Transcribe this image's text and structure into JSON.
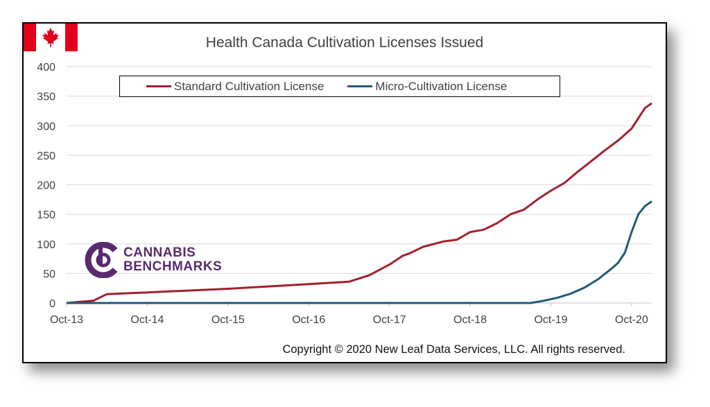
{
  "chart_data": {
    "type": "line",
    "title": "Health Canada Cultivation Licenses Issued",
    "xlabel": "",
    "ylabel": "",
    "ylim": [
      0,
      400
    ],
    "yticks": [
      0,
      50,
      100,
      150,
      200,
      250,
      300,
      350,
      400
    ],
    "xticks": [
      "Oct-13",
      "Oct-14",
      "Oct-15",
      "Oct-16",
      "Oct-17",
      "Oct-18",
      "Oct-19",
      "Oct-20"
    ],
    "grid": "horizontal",
    "legend_position": "top",
    "series": [
      {
        "name": "Standard Cultivation License",
        "color": "#a51e2e",
        "x": [
          "2013-10",
          "2013-12",
          "2014-02",
          "2014-04",
          "2014-06",
          "2014-10",
          "2015-04",
          "2015-10",
          "2016-04",
          "2016-10",
          "2017-04",
          "2017-07",
          "2017-10",
          "2017-12",
          "2018-01",
          "2018-03",
          "2018-06",
          "2018-08",
          "2018-10",
          "2018-12",
          "2019-02",
          "2019-04",
          "2019-06",
          "2019-08",
          "2019-10",
          "2019-12",
          "2020-02",
          "2020-04",
          "2020-06",
          "2020-08",
          "2020-10",
          "2020-12",
          "2021-01"
        ],
        "values": [
          0,
          2,
          4,
          15,
          16,
          18,
          21,
          24,
          28,
          32,
          36,
          47,
          65,
          80,
          84,
          95,
          104,
          107,
          120,
          124,
          135,
          150,
          158,
          175,
          190,
          203,
          222,
          240,
          258,
          275,
          295,
          330,
          338
        ]
      },
      {
        "name": "Micro-Cultivation License",
        "color": "#1f5a7a",
        "x": [
          "2013-10",
          "2019-07",
          "2019-09",
          "2019-11",
          "2020-01",
          "2020-03",
          "2020-05",
          "2020-07",
          "2020-08",
          "2020-09",
          "2020-10",
          "2020-11",
          "2020-12",
          "2021-01"
        ],
        "values": [
          0,
          0,
          4,
          9,
          16,
          26,
          40,
          58,
          68,
          85,
          120,
          150,
          164,
          172
        ]
      }
    ]
  },
  "watermark": {
    "line1": "CANNABIS",
    "line2": "BENCHMARKS"
  },
  "copyright": "Copyright © 2020 New Leaf Data Services, LLC. All rights reserved.",
  "colors": {
    "flag_red": "#e3001b",
    "logo_purple": "#5b2a6e",
    "grid": "#d9d9d9"
  }
}
